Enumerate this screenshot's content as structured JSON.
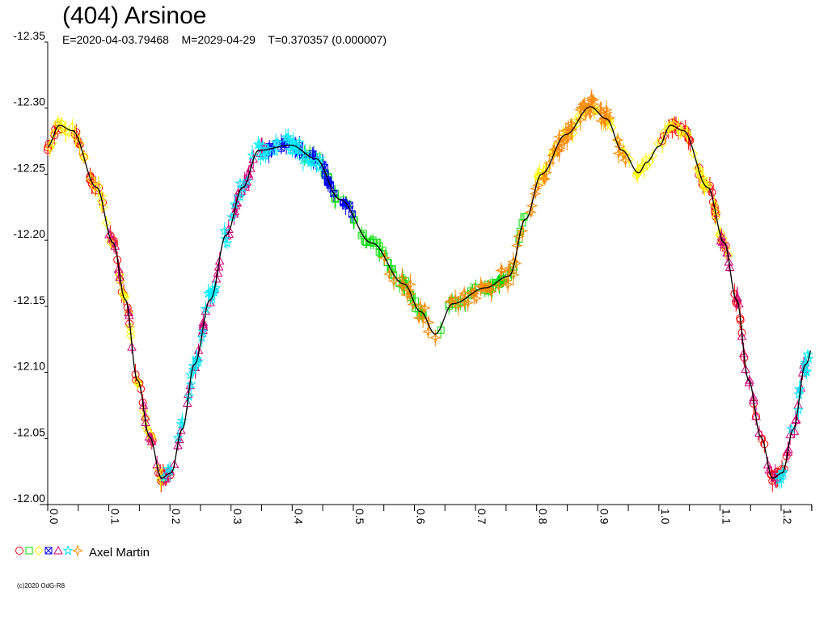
{
  "title": "(404) Arsinoe",
  "subtitle": {
    "epoch": "E=2020-04-03.79468",
    "model_date": "M=2029-04-29",
    "period": "T=0.370357 (0.000007)"
  },
  "legend": {
    "label": "Axel Martin"
  },
  "copyright": "(c)2020 OdG-R8",
  "chart_data": {
    "type": "scatter",
    "title": "(404) Arsinoe",
    "xlabel": "",
    "ylabel": "",
    "xlim": [
      0,
      1.25
    ],
    "ylim": [
      -12.35,
      -12.0
    ],
    "y_inverted": true,
    "grid": false,
    "legend_position": "bottom-left",
    "x_ticks": [
      "0.0",
      "0.1",
      "0.2",
      "0.3",
      "0.4",
      "0.5",
      "0.6",
      "0.7",
      "0.8",
      "0.9",
      "1.0",
      "1.1",
      "1.2"
    ],
    "y_ticks": [
      "-12.35",
      "-12.30",
      "-12.25",
      "-12.20",
      "-12.15",
      "-12.10",
      "-12.05",
      "-12.00"
    ],
    "model_curve": {
      "color": "#000000",
      "phase": [
        0.0,
        0.019,
        0.04,
        0.08,
        0.107,
        0.127,
        0.147,
        0.167,
        0.186,
        0.202,
        0.22,
        0.24,
        0.266,
        0.292,
        0.319,
        0.345,
        0.398,
        0.438,
        0.478,
        0.53,
        0.583,
        0.61,
        0.634,
        0.663,
        0.716,
        0.755,
        0.782,
        0.808,
        0.848,
        0.888,
        0.914,
        0.94,
        0.967,
        0.98,
        1.0
      ],
      "mag": [
        -12.271,
        -12.287,
        -12.283,
        -12.24,
        -12.198,
        -12.155,
        -12.094,
        -12.051,
        -12.02,
        -12.024,
        -12.057,
        -12.106,
        -12.155,
        -12.204,
        -12.24,
        -12.268,
        -12.272,
        -12.262,
        -12.231,
        -12.198,
        -12.167,
        -12.146,
        -12.129,
        -12.152,
        -12.164,
        -12.173,
        -12.216,
        -12.25,
        -12.28,
        -12.301,
        -12.292,
        -12.268,
        -12.251,
        -12.259,
        -12.271
      ]
    },
    "series": [
      {
        "symbol": "circle",
        "color": "#ff0000",
        "phase_ranges": [
          [
            0.0,
            0.21
          ],
          [
            1.0,
            1.21
          ]
        ]
      },
      {
        "symbol": "square",
        "color": "#00dd00",
        "phase_ranges": [
          [
            0.42,
            0.62
          ],
          [
            0.64,
            0.78
          ]
        ]
      },
      {
        "symbol": "diamond",
        "color": "#ffff00",
        "phase_ranges": [
          [
            0.0,
            0.19
          ],
          [
            0.8,
            1.12
          ]
        ]
      },
      {
        "symbol": "cross-square",
        "color": "#0000ff",
        "phase_ranges": [
          [
            0.36,
            0.5
          ]
        ]
      },
      {
        "symbol": "triangle",
        "color": "#cc0077",
        "phase_ranges": [
          [
            0.1,
            0.36
          ],
          [
            1.1,
            1.24
          ]
        ]
      },
      {
        "symbol": "star",
        "color": "#00eeff",
        "phase_ranges": [
          [
            0.19,
            0.45
          ],
          [
            1.19,
            1.25
          ]
        ]
      },
      {
        "symbol": "four-point-star",
        "color": "#ff8800",
        "phase_ranges": [
          [
            0.55,
            0.95
          ]
        ]
      }
    ]
  }
}
